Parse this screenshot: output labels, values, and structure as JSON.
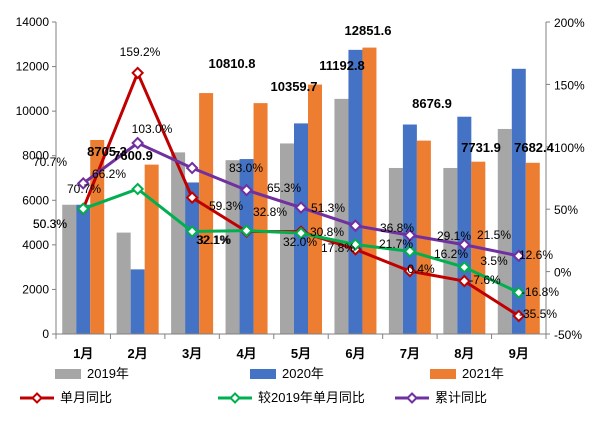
{
  "chart_data": {
    "type": "bar",
    "categories": [
      "1月",
      "2月",
      "3月",
      "4月",
      "5月",
      "6月",
      "7月",
      "8月",
      "9月"
    ],
    "y_left": {
      "min": 0,
      "max": 14000,
      "step": 2000,
      "ticks": [
        "0",
        "2000",
        "4000",
        "6000",
        "8000",
        "10000",
        "12000",
        "14000"
      ]
    },
    "y_right": {
      "min": -50,
      "max": 200,
      "step": 50,
      "ticks": [
        "-50%",
        "0%",
        "50%",
        "100%",
        "150%",
        "200%"
      ]
    },
    "grid": false,
    "legend_position": "bottom",
    "colors": {
      "bar_2019": "#a6a6a6",
      "bar_2020": "#4472c4",
      "bar_2021": "#ed7d31",
      "line_monthly": "#c00000",
      "line_vs2019": "#00b050",
      "line_cumulative": "#7030a0"
    },
    "bar_series": [
      {
        "name": "2019年",
        "values": [
          5800,
          4550,
          8150,
          7800,
          8550,
          10550,
          7450,
          7450,
          9200
        ]
      },
      {
        "name": "2020年",
        "values": [
          5800,
          2900,
          6800,
          7850,
          9450,
          12750,
          9400,
          9750,
          11900
        ]
      },
      {
        "name": "2021年",
        "values": [
          8705.3,
          7600.9,
          10810.8,
          10359.7,
          11192.8,
          12851.6,
          8676.9,
          7731.9,
          7682.4
        ]
      }
    ],
    "bar_value_labels": [
      "8705.3",
      "7600.9",
      "10810.8",
      "10359.7",
      "11192.8",
      "12851.6",
      "8676.9",
      "7731.9",
      "7682.4"
    ],
    "line_series": [
      {
        "name": "单月同比",
        "axis": "right",
        "values": [
          50.3,
          159.2,
          59.3,
          32.1,
          32.0,
          17.8,
          0.4,
          -7.6,
          -35.5
        ],
        "labels": [
          "50.3%",
          "159.2%",
          "59.3%",
          "32.1%",
          "32.0%",
          "17.8%",
          "0.4%",
          "-7.6%",
          "-35.5%"
        ]
      },
      {
        "name": "较2019年单月同比",
        "axis": "right",
        "values": [
          50.3,
          66.2,
          32.1,
          32.8,
          30.8,
          21.7,
          16.2,
          3.5,
          -16.8
        ],
        "labels": [
          "50.3%",
          "66.2%",
          "32.1%",
          "32.8%",
          "30.8%",
          "21.7%",
          "16.2%",
          "3.5%",
          "-16.8%"
        ]
      },
      {
        "name": "累计同比",
        "axis": "right",
        "values": [
          70.7,
          103.0,
          83.0,
          65.3,
          51.3,
          36.8,
          29.1,
          21.5,
          12.6
        ],
        "labels": [
          "70.7%",
          "103.0%",
          "83.0%",
          "65.3%",
          "51.3%",
          "36.8%",
          "29.1%",
          "21.5%",
          "12.6%"
        ]
      }
    ],
    "extra_annotations": [
      "70.7%"
    ]
  }
}
